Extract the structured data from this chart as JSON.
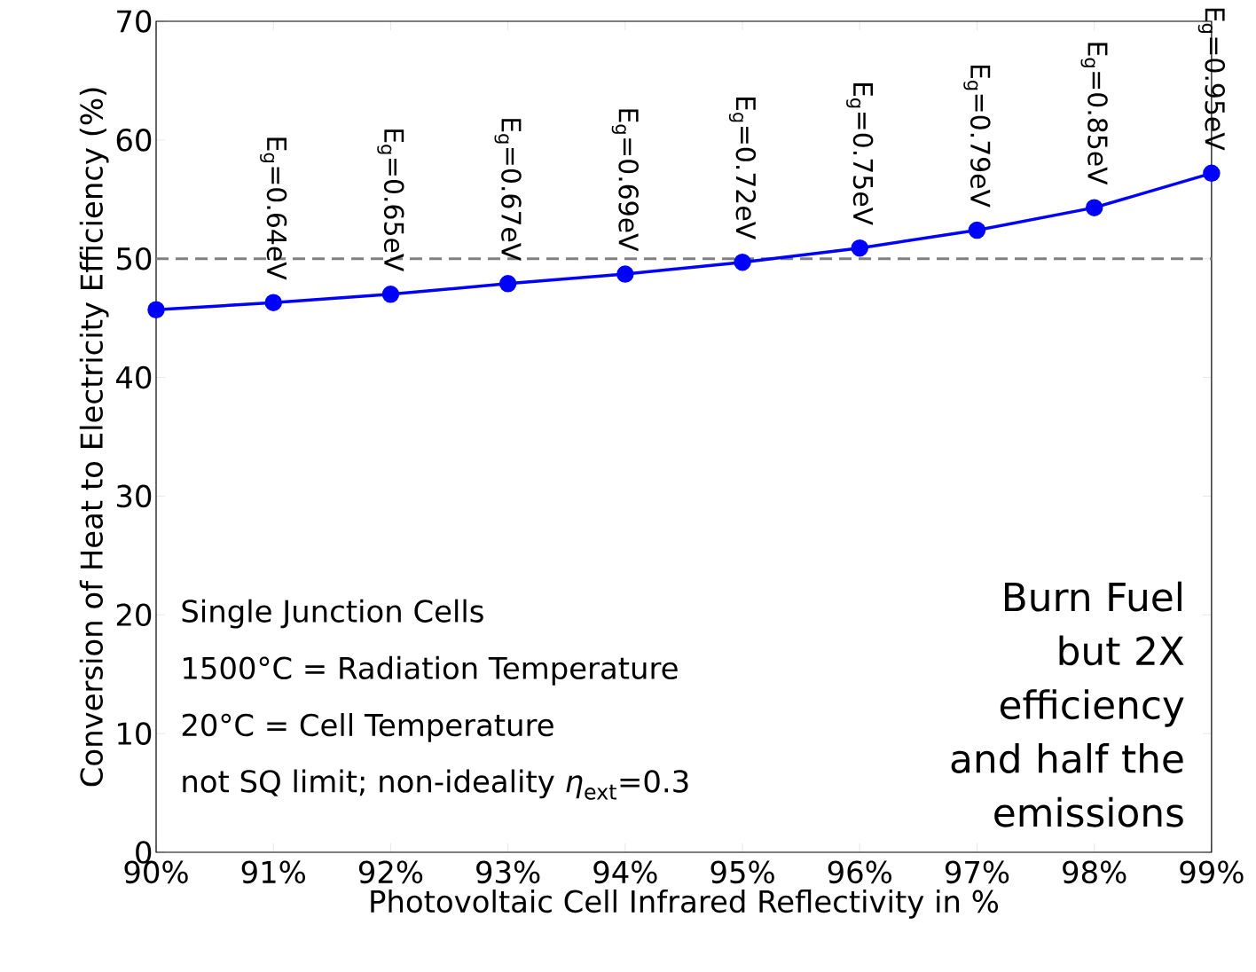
{
  "chart_data": {
    "type": "line",
    "xlabel": "Photovoltaic Cell Infrared Reflectivity in %",
    "ylabel": "Conversion of Heat to Electricity Efficiency (%)",
    "x": [
      90,
      91,
      92,
      93,
      94,
      95,
      96,
      97,
      98,
      99
    ],
    "series": [
      {
        "color": "#0000ff",
        "values": [
          45.7,
          46.3,
          47.0,
          47.9,
          48.7,
          49.7,
          50.9,
          52.4,
          54.3,
          57.2
        ]
      }
    ],
    "marker": "circle",
    "line_style": "solid",
    "xlim": [
      90,
      99
    ],
    "ylim": [
      0,
      70
    ],
    "xticks": [
      {
        "value": 90,
        "label": "90%"
      },
      {
        "value": 91,
        "label": "91%"
      },
      {
        "value": 92,
        "label": "92%"
      },
      {
        "value": 93,
        "label": "93%"
      },
      {
        "value": 94,
        "label": "94%"
      },
      {
        "value": 95,
        "label": "95%"
      },
      {
        "value": 96,
        "label": "96%"
      },
      {
        "value": 97,
        "label": "97%"
      },
      {
        "value": 98,
        "label": "98%"
      },
      {
        "value": 99,
        "label": "99%"
      }
    ],
    "yticks": [
      0,
      10,
      20,
      30,
      40,
      50,
      60,
      70
    ],
    "ref_lines": [
      {
        "axis": "y",
        "value": 50,
        "color": "#808080",
        "line_style": "dashed"
      }
    ],
    "annotations": [
      {
        "text": "E$_{g}$=0.64eV",
        "x": 91,
        "y": 46.3
      },
      {
        "text": "E$_{g}$=0.65eV",
        "x": 92,
        "y": 47.0
      },
      {
        "text": "E$_{g}$=0.67eV",
        "x": 93,
        "y": 47.9
      },
      {
        "text": "E$_{g}$=0.69eV",
        "x": 94,
        "y": 48.7
      },
      {
        "text": "E$_{g}$=0.72eV",
        "x": 95,
        "y": 49.7
      },
      {
        "text": "E$_{g}$=0.75eV",
        "x": 96,
        "y": 50.9
      },
      {
        "text": "E$_{g}$=0.79eV",
        "x": 97,
        "y": 52.4
      },
      {
        "text": "E$_{g}$=0.85eV",
        "x": 98,
        "y": 54.3
      },
      {
        "text": "E$_{g}$=0.95eV",
        "x": 99,
        "y": 57.2
      },
      "Single Junction Cells",
      "1500°C = Radiation Temperature",
      "20°C = Cell Temperature",
      "not SQ limit; non-ideality *η*$_{ext}$=0.3",
      "Burn Fuel but 2X efficiency and half the emissions"
    ]
  }
}
